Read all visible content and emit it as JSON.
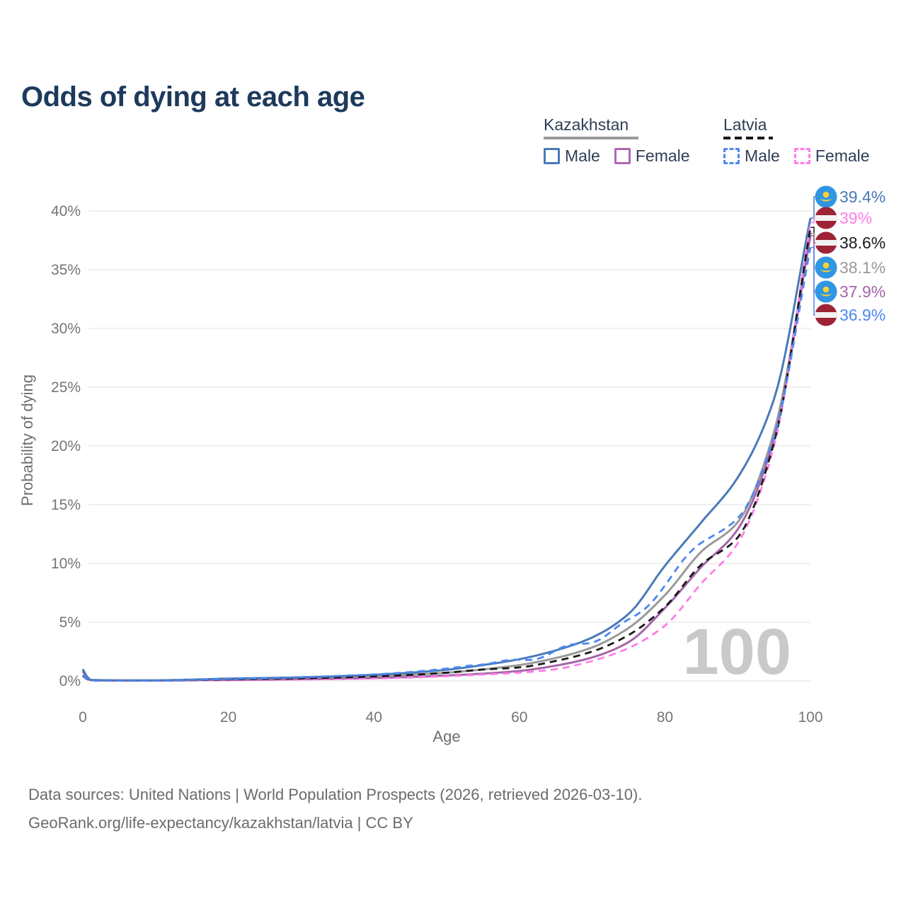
{
  "title": "Odds of dying at each age",
  "legend": {
    "groups": [
      {
        "name": "Kazakhstan",
        "line_style": "solid",
        "line_color": "#9a9a9a",
        "items": [
          {
            "label": "Male",
            "color": "#4a7ab9"
          },
          {
            "label": "Female",
            "color": "#b168b4"
          }
        ]
      },
      {
        "name": "Latvia",
        "line_style": "dashed",
        "line_color": "#1a1a1a",
        "items": [
          {
            "label": "Male",
            "color": "#4d87f0"
          },
          {
            "label": "Female",
            "color": "#ff7ce8"
          }
        ]
      }
    ]
  },
  "axes": {
    "x_label": "Age",
    "y_label": "Probability of dying",
    "x_ticks": [
      "0",
      "20",
      "40",
      "60",
      "80",
      "100"
    ],
    "y_ticks": [
      "0%",
      "5%",
      "10%",
      "15%",
      "20%",
      "25%",
      "30%",
      "35%",
      "40%"
    ]
  },
  "age_counter": "100",
  "end_labels": [
    {
      "text": "39.4%",
      "color": "#4a7ab9",
      "flag": "kazakhstan",
      "series": "Kazakhstan Male"
    },
    {
      "text": "39%",
      "color": "#ff7ce8",
      "flag": "latvia",
      "series": "Latvia Female"
    },
    {
      "text": "38.6%",
      "color": "#1a1a1a",
      "flag": "latvia",
      "series": "Latvia Total"
    },
    {
      "text": "38.1%",
      "color": "#9a9a9a",
      "flag": "kazakhstan",
      "series": "Kazakhstan Total"
    },
    {
      "text": "37.9%",
      "color": "#a565a8",
      "flag": "kazakhstan",
      "series": "Kazakhstan Female"
    },
    {
      "text": "36.9%",
      "color": "#4d87f0",
      "flag": "latvia",
      "series": "Latvia Male"
    }
  ],
  "footer": {
    "line1": "Data sources: United Nations | World Population Prospects (2026, retrieved 2026-03-10).",
    "line2": "GeoRank.org/life-expectancy/kazakhstan/latvia | CC BY"
  },
  "chart_data": {
    "type": "line",
    "title": "Odds of dying at each age",
    "xlabel": "Age",
    "ylabel": "Probability of dying",
    "xlim": [
      0,
      100
    ],
    "ylim": [
      0,
      40
    ],
    "grid": "horizontal",
    "legend_position": "top-right",
    "x": [
      0,
      1,
      5,
      10,
      15,
      20,
      25,
      30,
      35,
      40,
      45,
      50,
      55,
      60,
      65,
      70,
      75,
      80,
      85,
      90,
      95,
      100
    ],
    "series": [
      {
        "name": "Kazakhstan Male",
        "style": "solid",
        "color": "#4a7ab9",
        "end_label": "39.4%",
        "values": [
          1.0,
          0.09,
          0.05,
          0.05,
          0.11,
          0.2,
          0.25,
          0.31,
          0.4,
          0.52,
          0.7,
          0.95,
          1.35,
          1.85,
          2.6,
          3.7,
          5.7,
          9.8,
          13.5,
          17.3,
          24.0,
          39.4
        ]
      },
      {
        "name": "Kazakhstan Female",
        "style": "solid",
        "color": "#a565a8",
        "end_label": "37.9%",
        "values": [
          0.8,
          0.07,
          0.03,
          0.03,
          0.06,
          0.08,
          0.11,
          0.14,
          0.18,
          0.24,
          0.33,
          0.46,
          0.62,
          0.85,
          1.3,
          2.0,
          3.3,
          6.2,
          9.7,
          12.9,
          20.6,
          37.9
        ]
      },
      {
        "name": "Kazakhstan Total",
        "style": "solid",
        "color": "#9a9a9a",
        "end_label": "38.1%",
        "values": [
          0.9,
          0.08,
          0.04,
          0.04,
          0.09,
          0.14,
          0.18,
          0.23,
          0.29,
          0.38,
          0.52,
          0.7,
          0.98,
          1.35,
          1.95,
          2.85,
          4.5,
          7.3,
          11.0,
          13.5,
          21.2,
          38.1
        ]
      },
      {
        "name": "Latvia Male",
        "style": "dashed",
        "color": "#4d87f0",
        "end_label": "36.9%",
        "values": [
          0.5,
          0.05,
          0.03,
          0.03,
          0.09,
          0.17,
          0.23,
          0.31,
          0.42,
          0.55,
          0.75,
          1.05,
          1.45,
          1.75,
          2.5,
          3.5,
          5.0,
          8.2,
          11.8,
          13.8,
          20.8,
          36.9
        ]
      },
      {
        "name": "Latvia Female",
        "style": "dashed",
        "color": "#ff7ce8",
        "end_label": "39%",
        "values": [
          0.4,
          0.04,
          0.02,
          0.02,
          0.05,
          0.07,
          0.09,
          0.12,
          0.16,
          0.21,
          0.29,
          0.4,
          0.54,
          0.7,
          1.0,
          1.7,
          2.8,
          4.7,
          8.3,
          11.7,
          20.0,
          39.0
        ]
      },
      {
        "name": "Latvia Total",
        "style": "dashed",
        "color": "#1a1a1a",
        "end_label": "38.6%",
        "values": [
          0.45,
          0.05,
          0.03,
          0.03,
          0.07,
          0.12,
          0.16,
          0.21,
          0.28,
          0.37,
          0.51,
          0.7,
          0.97,
          1.15,
          1.7,
          2.5,
          3.9,
          6.3,
          9.9,
          12.2,
          20.3,
          38.6
        ]
      }
    ]
  }
}
